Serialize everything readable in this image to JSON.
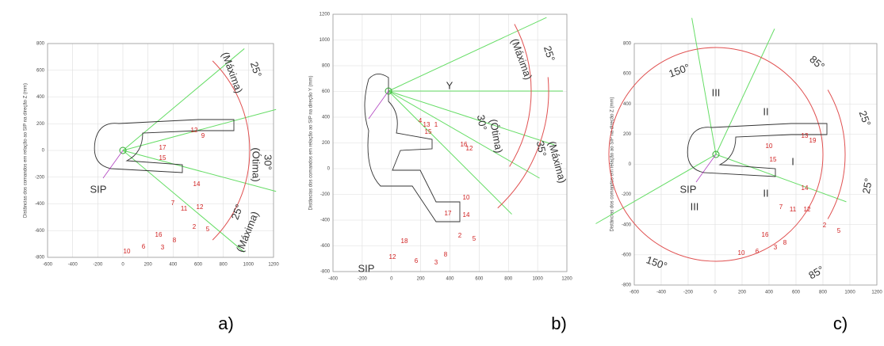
{
  "panels": [
    {
      "caption": "a)",
      "y_label": "Distâncias dos comandos em relação ao SIP na direção Z (mm)",
      "x_ticks": [
        "-600",
        "-400",
        "-200",
        "0",
        "200",
        "400",
        "600",
        "800",
        "1000",
        "1200"
      ],
      "y_ticks": [
        "800",
        "600",
        "400",
        "200",
        "0",
        "-200",
        "-400",
        "-600",
        "-800"
      ],
      "annotations": [
        "25°",
        "(Máxima)",
        "30°",
        "(Ótima)",
        "25°",
        "(Máxima)",
        "SIP"
      ],
      "control_numbers": [
        "12",
        "9",
        "17",
        "15",
        "14",
        "7",
        "11",
        "12",
        "2",
        "5",
        "16",
        "8",
        "3",
        "10",
        "6"
      ]
    },
    {
      "caption": "b)",
      "y_label": "Distâncias dos comandos em relação ao SIP na direção Y (mm)",
      "x_ticks": [
        "-400",
        "-200",
        "0",
        "200",
        "400",
        "600",
        "800",
        "1000",
        "1200"
      ],
      "y_ticks": [
        "1200",
        "1000",
        "800",
        "600",
        "400",
        "200",
        "0",
        "-200",
        "-400",
        "-600",
        "-800"
      ],
      "annotations": [
        "25°",
        "(Máxima)",
        "30°",
        "(Ótima)",
        "35°",
        "(Máxima)",
        "Y",
        "SIP"
      ],
      "control_numbers": [
        "4",
        "13",
        "1",
        "15",
        "16",
        "12",
        "10",
        "17",
        "14",
        "2",
        "5",
        "18",
        "12",
        "6",
        "3",
        "8"
      ]
    },
    {
      "caption": "c)",
      "y_label": "Distâncias dos comandos em relação ao SIP na direção Z (mm)",
      "x_ticks": [
        "-600",
        "-400",
        "-200",
        "0",
        "200",
        "400",
        "600",
        "800",
        "1000",
        "1200"
      ],
      "y_ticks": [
        "800",
        "600",
        "400",
        "200",
        "0",
        "-200",
        "-400",
        "-600",
        "-800"
      ],
      "annotations": [
        "150°",
        "85°",
        "25°",
        "25°",
        "150°",
        "85°",
        "III",
        "II",
        "I",
        "III",
        "II",
        "SIP"
      ],
      "control_numbers": [
        "13",
        "19",
        "10",
        "15",
        "14",
        "7",
        "11",
        "12",
        "2",
        "5",
        "16",
        "8",
        "3",
        "6",
        "10"
      ]
    }
  ]
}
